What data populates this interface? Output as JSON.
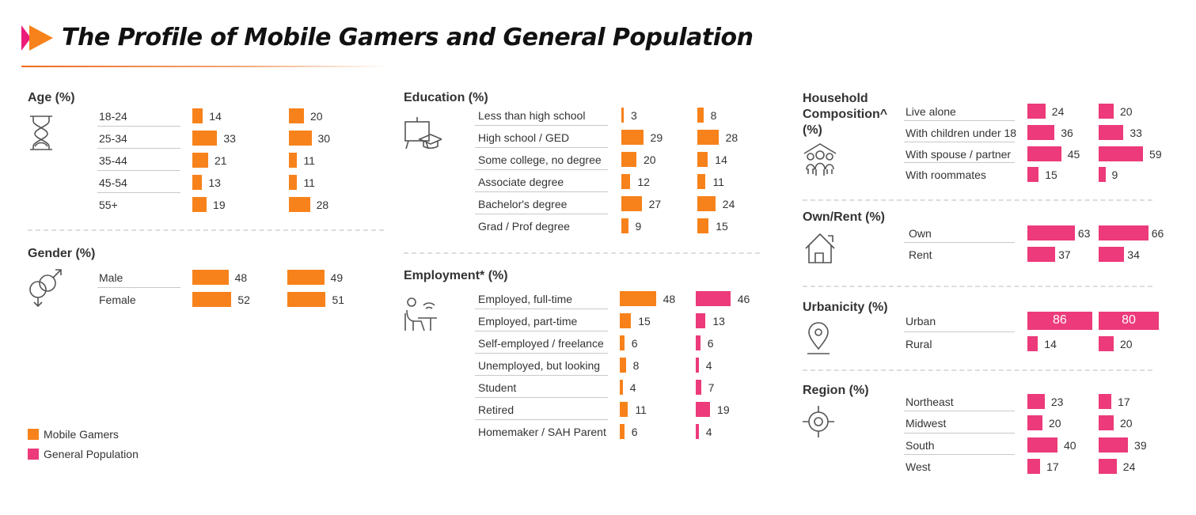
{
  "title": "The Profile of Mobile Gamers and General Population",
  "colors": {
    "mobile_gamers": "#F7821B",
    "general_population": "#EC3A7A",
    "title_arrow_pink": "#EC1C7A",
    "title_arrow_orange": "#F7821B"
  },
  "legend": [
    {
      "label": "Mobile Gamers",
      "color": "#F7821B"
    },
    {
      "label": "General Population",
      "color": "#EC3A7A"
    }
  ],
  "chart_data": [
    {
      "type": "bar",
      "title": "Age (%)",
      "icon": "hourglass-icon",
      "bar_colors": [
        "#F7821B",
        "#F7821B"
      ],
      "categories": [
        "18-24",
        "25-34",
        "35-44",
        "45-54",
        "55+"
      ],
      "series": [
        {
          "values": [
            14,
            33,
            21,
            13,
            19
          ]
        },
        {
          "values": [
            20,
            30,
            11,
            11,
            28
          ]
        }
      ]
    },
    {
      "type": "bar",
      "title": "Gender (%)",
      "icon": "gender-icon",
      "bar_colors": [
        "#F7821B",
        "#F7821B"
      ],
      "categories": [
        "Male",
        "Female"
      ],
      "series": [
        {
          "values": [
            48,
            52
          ]
        },
        {
          "values": [
            49,
            51
          ]
        }
      ]
    },
    {
      "type": "bar",
      "title": "Education (%)",
      "icon": "education-icon",
      "bar_colors": [
        "#F7821B",
        "#F7821B"
      ],
      "categories": [
        "Less than high school",
        "High school / GED",
        "Some college, no degree",
        "Associate degree",
        "Bachelor's degree",
        "Grad / Prof degree"
      ],
      "series": [
        {
          "values": [
            3,
            29,
            20,
            12,
            27,
            9
          ]
        },
        {
          "values": [
            8,
            28,
            14,
            11,
            24,
            15
          ]
        }
      ]
    },
    {
      "type": "bar",
      "title": "Employment* (%)",
      "icon": "worker-desk-icon",
      "bar_colors": [
        "#F7821B",
        "#EC3A7A"
      ],
      "categories": [
        "Employed, full-time",
        "Employed, part-time",
        "Self-employed / freelance",
        "Unemployed, but looking",
        "Student",
        "Retired",
        "Homemaker / SAH Parent"
      ],
      "series": [
        {
          "values": [
            48,
            15,
            6,
            8,
            4,
            11,
            6
          ]
        },
        {
          "values": [
            46,
            13,
            6,
            4,
            7,
            19,
            4
          ]
        }
      ]
    },
    {
      "type": "bar",
      "title": "Household Composition^ (%)",
      "icon": "family-house-icon",
      "bar_colors": [
        "#EC3A7A",
        "#EC3A7A"
      ],
      "categories": [
        "Live alone",
        "With children under 18",
        "With spouse / partner",
        "With roommates"
      ],
      "series": [
        {
          "values": [
            24,
            36,
            45,
            15
          ]
        },
        {
          "values": [
            20,
            33,
            59,
            9
          ]
        }
      ]
    },
    {
      "type": "bar",
      "title": "Own/Rent (%)",
      "icon": "house-icon",
      "bar_colors": [
        "#EC3A7A",
        "#EC3A7A"
      ],
      "categories": [
        "Own",
        "Rent"
      ],
      "series": [
        {
          "values": [
            63,
            37
          ]
        },
        {
          "values": [
            66,
            34
          ]
        }
      ]
    },
    {
      "type": "bar",
      "title": "Urbanicity (%)",
      "icon": "location-pin-icon",
      "bar_colors": [
        "#EC3A7A",
        "#EC3A7A"
      ],
      "categories": [
        "Urban",
        "Rural"
      ],
      "series": [
        {
          "values": [
            86,
            14
          ]
        },
        {
          "values": [
            80,
            20
          ]
        }
      ]
    },
    {
      "type": "bar",
      "title": "Region (%)",
      "icon": "target-icon",
      "bar_colors": [
        "#EC3A7A",
        "#EC3A7A"
      ],
      "categories": [
        "Northeast",
        "Midwest",
        "South",
        "West"
      ],
      "series": [
        {
          "values": [
            23,
            20,
            40,
            17
          ]
        },
        {
          "values": [
            17,
            20,
            39,
            24
          ]
        }
      ]
    }
  ]
}
